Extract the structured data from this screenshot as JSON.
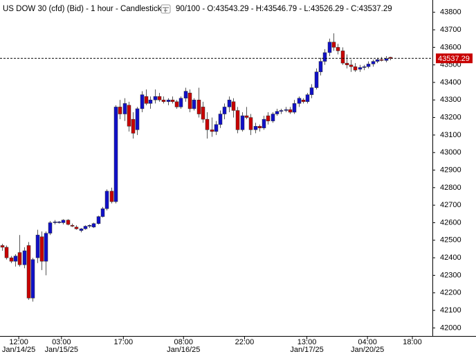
{
  "chart_data": {
    "type": "candlestick",
    "title": "US DOW 30 (cfd) (Bid) - 1 hour - Candlestick",
    "subtitle": "90/100 - O:43543.29 - H:43546.79 - L:43526.29 - C:43537.29",
    "up_color": "#1010c8",
    "down_color": "#c80000",
    "ylim": [
      41950,
      43870
    ],
    "yticks": [
      42000,
      42100,
      42200,
      42300,
      42400,
      42500,
      42600,
      42700,
      42800,
      42900,
      43000,
      43100,
      43200,
      43300,
      43400,
      43500,
      43600,
      43700,
      43800
    ],
    "xlim": [
      -0.5,
      98.7
    ],
    "xticks": [
      {
        "value": 3.8,
        "label": "12:00",
        "date": "Jan/14/25"
      },
      {
        "value": 13.6,
        "label": "03:00",
        "date": "Jan/15/25"
      },
      {
        "value": 27.8,
        "label": "17:00"
      },
      {
        "value": 41.6,
        "label": "08:00",
        "date": "Jan/16/25"
      },
      {
        "value": 55.6,
        "label": "22:00"
      },
      {
        "value": 69.9,
        "label": "13:00",
        "date": "Jan/17/25"
      },
      {
        "value": 83.8,
        "label": "04:00",
        "date": "Jan/20/25"
      },
      {
        "value": 94.1,
        "label": "18:00"
      }
    ],
    "last_price": 43537.29,
    "candles": [
      [
        42470,
        42480,
        42440,
        42460
      ],
      [
        42460,
        42470,
        42390,
        42400
      ],
      [
        42400,
        42410,
        42370,
        42380
      ],
      [
        42380,
        42420,
        42350,
        42410
      ],
      [
        42430,
        42530,
        42350,
        42360
      ],
      [
        42360,
        42460,
        42340,
        42440
      ],
      [
        42470,
        42490,
        42160,
        42170
      ],
      [
        42170,
        42400,
        42150,
        42390
      ],
      [
        42400,
        42560,
        42370,
        42530
      ],
      [
        42520,
        42550,
        42330,
        42380
      ],
      [
        42380,
        42550,
        42300,
        42540
      ],
      [
        42540,
        42610,
        42530,
        42600
      ],
      [
        42600,
        42615,
        42590,
        42605
      ],
      [
        42600,
        42610,
        42595,
        42605
      ],
      [
        42600,
        42620,
        42590,
        42615
      ],
      [
        42615,
        42620,
        42585,
        42590
      ],
      [
        42585,
        42595,
        42575,
        42580
      ],
      [
        42575,
        42585,
        42560,
        42565
      ],
      [
        42555,
        42570,
        42545,
        42565
      ],
      [
        42565,
        42585,
        42560,
        42580
      ],
      [
        42580,
        42590,
        42570,
        42585
      ],
      [
        42575,
        42600,
        42570,
        42595
      ],
      [
        42595,
        42640,
        42590,
        42635
      ],
      [
        42635,
        42690,
        42630,
        42680
      ],
      [
        42680,
        42790,
        42670,
        42780
      ],
      [
        42780,
        42800,
        42710,
        42720
      ],
      [
        42720,
        43270,
        42710,
        43260
      ],
      [
        43260,
        43300,
        43190,
        43220
      ],
      [
        43220,
        43310,
        43180,
        43280
      ],
      [
        43270,
        43290,
        43120,
        43150
      ],
      [
        43190,
        43230,
        43080,
        43110
      ],
      [
        43130,
        43260,
        43100,
        43250
      ],
      [
        43250,
        43350,
        43230,
        43330
      ],
      [
        43320,
        43360,
        43270,
        43280
      ],
      [
        43280,
        43320,
        43250,
        43300
      ],
      [
        43300,
        43360,
        43280,
        43320
      ],
      [
        43320,
        43340,
        43290,
        43300
      ],
      [
        43300,
        43320,
        43280,
        43290
      ],
      [
        43290,
        43310,
        43270,
        43300
      ],
      [
        43300,
        43320,
        43280,
        43290
      ],
      [
        43290,
        43300,
        43250,
        43260
      ],
      [
        43260,
        43320,
        43250,
        43310
      ],
      [
        43310,
        43370,
        43290,
        43350
      ],
      [
        43340,
        43360,
        43230,
        43250
      ],
      [
        43250,
        43310,
        43240,
        43300
      ],
      [
        43300,
        43370,
        43200,
        43220
      ],
      [
        43260,
        43290,
        43170,
        43190
      ],
      [
        43190,
        43230,
        43080,
        43130
      ],
      [
        43130,
        43200,
        43090,
        43120
      ],
      [
        43120,
        43180,
        43100,
        43160
      ],
      [
        43160,
        43240,
        43140,
        43220
      ],
      [
        43220,
        43280,
        43190,
        43260
      ],
      [
        43260,
        43320,
        43230,
        43300
      ],
      [
        43290,
        43310,
        43200,
        43240
      ],
      [
        43240,
        43260,
        43110,
        43130
      ],
      [
        43130,
        43230,
        43120,
        43210
      ],
      [
        43210,
        43260,
        43190,
        43200
      ],
      [
        43200,
        43220,
        43100,
        43130
      ],
      [
        43130,
        43170,
        43110,
        43150
      ],
      [
        43150,
        43160,
        43120,
        43140
      ],
      [
        43140,
        43210,
        43130,
        43190
      ],
      [
        43210,
        43230,
        43160,
        43180
      ],
      [
        43180,
        43230,
        43170,
        43220
      ],
      [
        43220,
        43250,
        43210,
        43235
      ],
      [
        43235,
        43250,
        43220,
        43240
      ],
      [
        43240,
        43260,
        43230,
        43245
      ],
      [
        43245,
        43260,
        43220,
        43230
      ],
      [
        43230,
        43300,
        43220,
        43280
      ],
      [
        43280,
        43320,
        43260,
        43310
      ],
      [
        43300,
        43310,
        43280,
        43290
      ],
      [
        43290,
        43340,
        43280,
        43330
      ],
      [
        43330,
        43390,
        43310,
        43370
      ],
      [
        43370,
        43480,
        43360,
        43460
      ],
      [
        43460,
        43540,
        43440,
        43520
      ],
      [
        43520,
        43590,
        43500,
        43570
      ],
      [
        43570,
        43650,
        43550,
        43630
      ],
      [
        43630,
        43680,
        43580,
        43600
      ],
      [
        43600,
        43620,
        43560,
        43580
      ],
      [
        43580,
        43600,
        43500,
        43510
      ],
      [
        43510,
        43560,
        43480,
        43500
      ],
      [
        43500,
        43530,
        43460,
        43490
      ],
      [
        43490,
        43510,
        43460,
        43470
      ],
      [
        43475,
        43500,
        43460,
        43485
      ],
      [
        43485,
        43500,
        43470,
        43490
      ],
      [
        43490,
        43520,
        43480,
        43505
      ],
      [
        43505,
        43530,
        43490,
        43520
      ],
      [
        43520,
        43540,
        43510,
        43530
      ],
      [
        43530,
        43545,
        43520,
        43525
      ],
      [
        43525,
        43550,
        43515,
        43535
      ],
      [
        43543.29,
        43546.79,
        43526.29,
        43537.29
      ]
    ]
  }
}
